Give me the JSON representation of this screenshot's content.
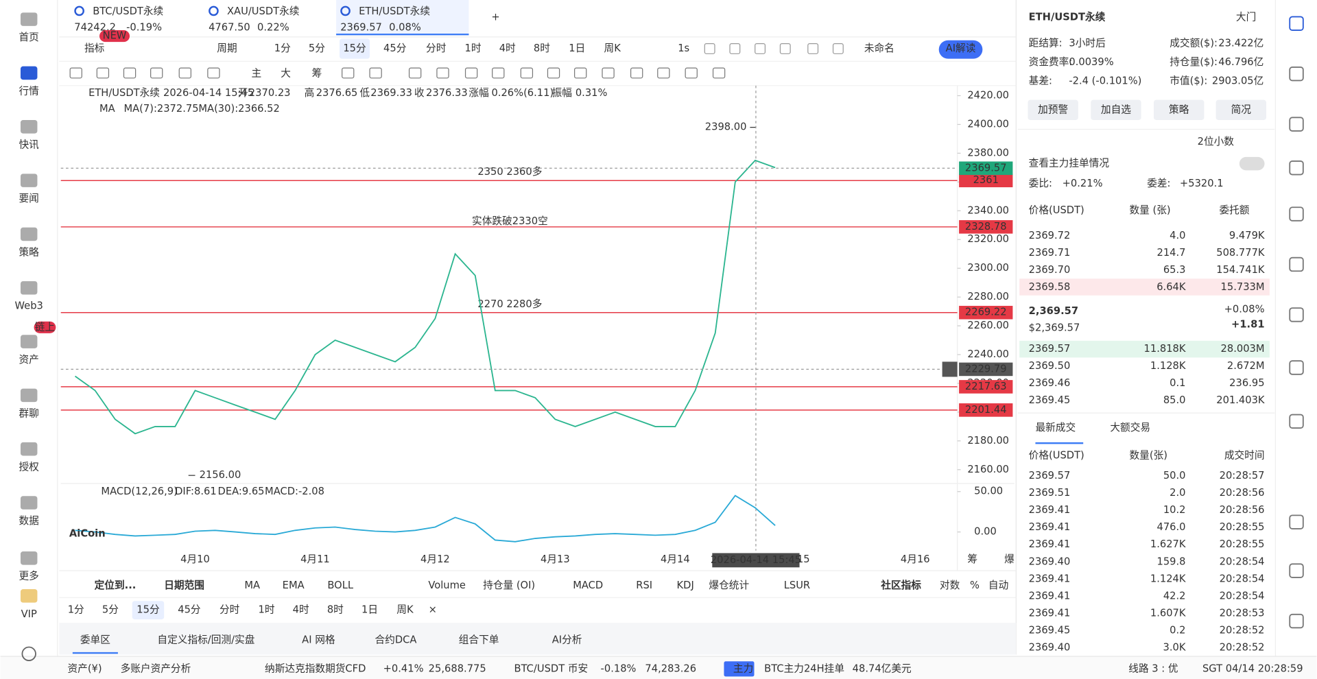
{
  "sidebar": {
    "items": [
      "首页",
      "行情",
      "快讯",
      "要闻",
      "策略",
      "Web3",
      "资产",
      "群聊",
      "授权",
      "数据",
      "更多",
      "VIP"
    ],
    "badge": "链上"
  },
  "tabs": [
    {
      "symbol": "BTC/USDT永续",
      "price": "74242.2",
      "change": "-0.19%"
    },
    {
      "symbol": "XAU/USDT永续",
      "price": "4767.50",
      "change": "0.22%"
    },
    {
      "symbol": "ETH/USDT永续",
      "price": "2369.57",
      "change": "0.08%"
    }
  ],
  "toolbar": {
    "items": [
      "指标",
      "周期",
      "1分",
      "5分",
      "15分",
      "45分",
      "分时",
      "1时",
      "4时",
      "8时",
      "1日",
      "周K",
      "1s",
      "未命名",
      "AI解读"
    ],
    "badge": "NEW",
    "tools": [
      "主",
      "大",
      "筹"
    ]
  },
  "chart_data": {
    "type": "line",
    "symbol": "ETH/USDT永续",
    "time": "2026-04-14 15:45",
    "ohlc_labels": [
      "开",
      "高",
      "低",
      "收",
      "涨幅",
      "振幅"
    ],
    "ohlc_values": [
      "2370.23",
      "2376.65",
      "2369.33",
      "2376.33",
      "0.26%(6.11)",
      "0.31%"
    ],
    "ma_label": "MA",
    "ma_values": [
      "MA(7):2372.75",
      "MA(30):2366.52"
    ],
    "categories": [
      null,
      null,
      null,
      null,
      null,
      null,
      "4月10",
      null,
      null,
      null,
      null,
      null,
      "4月11",
      null,
      null,
      null,
      null,
      null,
      "4月12",
      null,
      null,
      null,
      null,
      null,
      "4月13",
      null,
      null,
      null,
      null,
      null,
      "4月14",
      null,
      null,
      null,
      null,
      null,
      "4月15",
      null,
      null,
      null,
      null,
      null,
      "4月16"
    ],
    "series": [
      {
        "name": "ETH/USDT永续",
        "color": "#2bb58f",
        "values": [
          2225,
          2215,
          2195,
          2185,
          2190,
          2190,
          2215,
          2210,
          2205,
          2200,
          2195,
          2215,
          2240,
          2250,
          2245,
          2240,
          2235,
          2245,
          2265,
          2310,
          2295,
          2215,
          2215,
          2210,
          2195,
          2190,
          2195,
          2200,
          2195,
          2190,
          2190,
          2215,
          2255,
          2360,
          2375,
          2370,
          null,
          null,
          null,
          null,
          null,
          null,
          null
        ]
      }
    ],
    "ylim": [
      2151,
      2427
    ],
    "yticks": [
      {
        "value": 2160,
        "label": "2160.00"
      },
      {
        "value": 2180,
        "label": "2180.00"
      },
      {
        "value": 2200,
        "label": "2200.00"
      },
      {
        "value": 2220,
        "label": "2220.00"
      },
      {
        "value": 2240,
        "label": "2240.00"
      },
      {
        "value": 2260,
        "label": "2260.00"
      },
      {
        "value": 2280,
        "label": "2280.00"
      },
      {
        "value": 2300,
        "label": "2300.00"
      },
      {
        "value": 2320,
        "label": "2320.00"
      },
      {
        "value": 2340,
        "label": "2340.00"
      },
      {
        "value": 2360,
        "label": "2360.00"
      },
      {
        "value": 2380,
        "label": "2380.00"
      },
      {
        "value": 2400,
        "label": "2400.00"
      },
      {
        "value": 2420,
        "label": "2420.00"
      }
    ],
    "level_lines": [
      2361,
      2328.78,
      2269.22,
      2217.63,
      2201.44
    ],
    "level_color": "#e53945",
    "annotations": [
      "2350 2360多",
      "实体跌破2330空",
      "2270 2280多"
    ],
    "high": {
      "value": 2398,
      "label": "2398.00"
    },
    "low": {
      "value": 2156,
      "label": "2156.00"
    },
    "last_price": 2369.57,
    "crosshair_price": 2229.79,
    "axis_extras": [
      "筹",
      "爆"
    ],
    "watermark": "AiCoin",
    "macd": {
      "title": "MACD(12,26,9)",
      "labels": [
        "DIF:8.61",
        "DEA:9.65",
        "MACD:-2.08"
      ],
      "color": "#29a9d6",
      "dif": [
        2,
        0,
        -3,
        -5,
        -4,
        -3,
        1,
        2,
        0,
        -2,
        -3,
        2,
        5,
        6,
        3,
        1,
        0,
        2,
        6,
        18,
        10,
        -10,
        -12,
        -8,
        -6,
        -5,
        -3,
        -2,
        -3,
        -4,
        -3,
        2,
        12,
        45,
        30,
        8,
        null,
        null,
        null,
        null,
        null,
        null,
        null
      ],
      "ylim": [
        -22,
        58
      ],
      "yticks": [
        {
          "value": 50,
          "label": "50.00"
        },
        {
          "value": 0,
          "label": "0.00"
        }
      ]
    }
  },
  "indicator_bar": [
    "定位到...",
    "日期范围",
    "MA",
    "EMA",
    "BOLL",
    "Volume",
    "持仓量 (OI)",
    "MACD",
    "RSI",
    "KDJ",
    "爆仓统计",
    "LSUR",
    "社区指标",
    "对数",
    "%",
    "自动"
  ],
  "periods": [
    "1分",
    "5分",
    "15分",
    "45分",
    "分时",
    "1时",
    "4时",
    "8时",
    "1日",
    "周K",
    "×"
  ],
  "bottom_tabs": [
    "委单区",
    "自定义指标/回测/实盘",
    "AI 网格",
    "合约DCA",
    "组合下单",
    "AI分析"
  ],
  "status_bar": [
    "资产(¥)",
    "多账户资产分析",
    "纳斯达克指数期货CFD",
    "+0.41%",
    "25,688.775",
    "BTC/USDT 币安",
    "-0.18%",
    "74,283.26",
    "主力",
    "BTC主力24H挂单",
    "48.74亿美元",
    "线路 3 : 优",
    "SGT 04/14 20:28:59"
  ],
  "right_panel": {
    "title": "ETH/USDT永续",
    "mode": "大门",
    "stats": [
      [
        "距结算:",
        "3小时后"
      ],
      [
        "成交额($):",
        "23.422亿"
      ],
      [
        "资金费率:",
        "0.0039%"
      ],
      [
        "持仓量($):",
        "46.796亿"
      ],
      [
        "基差:",
        "-2.4 (-0.101%)"
      ],
      [
        "市值($):",
        "2903.05亿"
      ]
    ],
    "buttons": [
      "加预警",
      "加自选",
      "策略",
      "简况"
    ],
    "decimals": "2位小数",
    "depth_link": "查看主力挂单情况",
    "ratio": [
      "委比:",
      "+0.21%",
      "委差:",
      "+5320.1"
    ],
    "book_headers": [
      "价格(USDT)",
      "数量 (张)",
      "委托额"
    ],
    "asks": [
      [
        "2369.72",
        "4.0",
        "9.479K"
      ],
      [
        "2369.71",
        "214.7",
        "508.777K"
      ],
      [
        "2369.70",
        "65.3",
        "154.741K"
      ],
      [
        "2369.58",
        "6.64K",
        "15.733M"
      ]
    ],
    "last_price": "2,369.57",
    "last_usd": "$2,369.57",
    "change_pct": "+0.08%",
    "change_abs": "+1.81",
    "bids": [
      [
        "2369.57",
        "11.818K",
        "28.003M"
      ],
      [
        "2369.50",
        "1.128K",
        "2.672M"
      ],
      [
        "2369.46",
        "0.1",
        "236.95"
      ],
      [
        "2369.45",
        "85.0",
        "201.403K"
      ]
    ],
    "trade_tabs": [
      "最新成交",
      "大额交易"
    ],
    "trade_headers": [
      "价格(USDT)",
      "数量(张)",
      "成交时间"
    ],
    "trades": [
      {
        "price": "2369.57",
        "qty": "50.0",
        "time": "20:28:57",
        "color": "#e0314b"
      },
      {
        "price": "2369.51",
        "qty": "2.0",
        "time": "20:28:56",
        "color": "#20b26c"
      },
      {
        "price": "2369.41",
        "qty": "10.2",
        "time": "20:28:56",
        "color": "#20b26c"
      },
      {
        "price": "2369.41",
        "qty": "476.0",
        "time": "20:28:55",
        "color": "#20b26c"
      },
      {
        "price": "2369.41",
        "qty": "1.627K",
        "time": "20:28:55",
        "color": "#20b26c"
      },
      {
        "price": "2369.40",
        "qty": "159.8",
        "time": "20:28:54",
        "color": "#e0314b"
      },
      {
        "price": "2369.41",
        "qty": "1.124K",
        "time": "20:28:54",
        "color": "#20b26c"
      },
      {
        "price": "2369.41",
        "qty": "42.2",
        "time": "20:28:54",
        "color": "#20b26c"
      },
      {
        "price": "2369.41",
        "qty": "1.607K",
        "time": "20:28:53",
        "color": "#20b26c"
      },
      {
        "price": "2369.45",
        "qty": "0.2",
        "time": "20:28:52",
        "color": "#e0314b"
      },
      {
        "price": "2369.40",
        "qty": "3.0K",
        "time": "20:28:52",
        "color": "#e0314b"
      }
    ]
  }
}
